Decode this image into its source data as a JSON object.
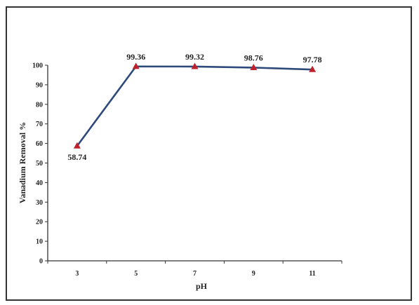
{
  "chart_data": {
    "type": "line",
    "x": [
      "3",
      "5",
      "7",
      "9",
      "11"
    ],
    "series": [
      {
        "values": [
          58.74,
          99.36,
          99.32,
          98.76,
          97.78
        ],
        "labels": [
          "58.74",
          "99.36",
          "99.32",
          "98.76",
          "97.78"
        ]
      }
    ],
    "xlabel": "pH",
    "ylabel": "Vanadium Removal %",
    "ylim": [
      0,
      100
    ],
    "yticks": [
      "0",
      "10",
      "20",
      "30",
      "40",
      "50",
      "60",
      "70",
      "80",
      "90",
      "100"
    ],
    "grid": false,
    "legend": "none",
    "line_color": "#2e4a7a",
    "marker_color": "#c0202a",
    "marker": "triangle"
  }
}
